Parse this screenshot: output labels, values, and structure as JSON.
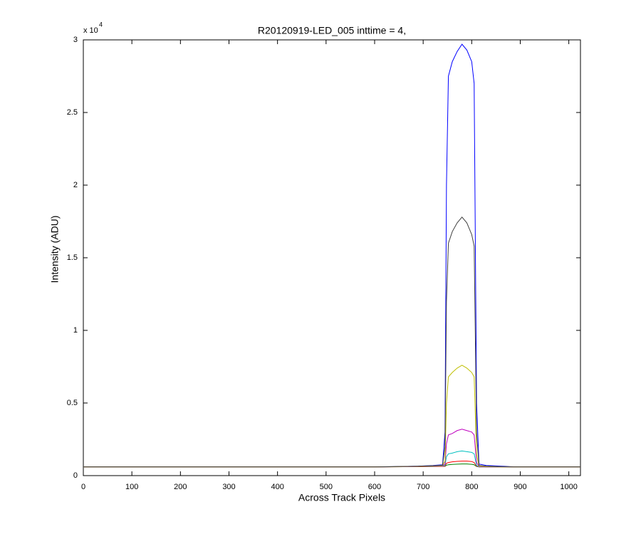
{
  "chart_data": {
    "type": "line",
    "title": "R20120919-LED_005 inttime = 4,",
    "xlabel": "Across Track Pixels",
    "ylabel": "Intensity (ADU)",
    "y_multiplier": "x 10",
    "y_multiplier_exponent": "4",
    "xlim": [
      0,
      1024
    ],
    "ylim": [
      0,
      3
    ],
    "xticks": [
      0,
      100,
      200,
      300,
      400,
      500,
      600,
      700,
      800,
      900,
      1000
    ],
    "yticks": [
      0,
      0.5,
      1,
      1.5,
      2,
      2.5,
      3
    ],
    "grid": false,
    "x": [
      0,
      100,
      200,
      300,
      400,
      500,
      600,
      690,
      720,
      740,
      745,
      748,
      752,
      760,
      770,
      780,
      790,
      800,
      805,
      810,
      815,
      830,
      860,
      880,
      900,
      1024
    ],
    "series": [
      {
        "color": "#0000ff",
        "values": [
          0.06,
          0.06,
          0.06,
          0.06,
          0.06,
          0.06,
          0.06,
          0.065,
          0.07,
          0.075,
          0.3,
          2.0,
          2.75,
          2.85,
          2.92,
          2.97,
          2.93,
          2.85,
          2.7,
          0.5,
          0.08,
          0.07,
          0.065,
          0.062,
          0.06,
          0.06
        ]
      },
      {
        "color": "#008000",
        "values": [
          0.06,
          0.06,
          0.06,
          0.06,
          0.06,
          0.06,
          0.06,
          0.062,
          0.063,
          0.064,
          0.064,
          0.072,
          0.075,
          0.077,
          0.079,
          0.08,
          0.08,
          0.078,
          0.075,
          0.063,
          0.06,
          0.06,
          0.06,
          0.06,
          0.06,
          0.06
        ]
      },
      {
        "color": "#ff0000",
        "values": [
          0.06,
          0.06,
          0.06,
          0.06,
          0.06,
          0.06,
          0.06,
          0.062,
          0.063,
          0.064,
          0.065,
          0.085,
          0.09,
          0.095,
          0.098,
          0.1,
          0.1,
          0.097,
          0.09,
          0.065,
          0.06,
          0.06,
          0.06,
          0.06,
          0.06,
          0.06
        ]
      },
      {
        "color": "#00bfbf",
        "values": [
          0.06,
          0.06,
          0.06,
          0.06,
          0.06,
          0.06,
          0.06,
          0.063,
          0.065,
          0.066,
          0.07,
          0.13,
          0.15,
          0.155,
          0.165,
          0.17,
          0.165,
          0.16,
          0.15,
          0.07,
          0.06,
          0.06,
          0.06,
          0.06,
          0.06,
          0.06
        ]
      },
      {
        "color": "#bf00bf",
        "values": [
          0.06,
          0.06,
          0.06,
          0.06,
          0.06,
          0.06,
          0.06,
          0.063,
          0.066,
          0.068,
          0.08,
          0.22,
          0.28,
          0.29,
          0.31,
          0.32,
          0.31,
          0.3,
          0.28,
          0.09,
          0.062,
          0.06,
          0.06,
          0.06,
          0.06,
          0.06
        ]
      },
      {
        "color": "#bfbf00",
        "values": [
          0.06,
          0.06,
          0.06,
          0.06,
          0.06,
          0.06,
          0.06,
          0.064,
          0.067,
          0.07,
          0.1,
          0.5,
          0.68,
          0.71,
          0.74,
          0.76,
          0.74,
          0.71,
          0.68,
          0.15,
          0.065,
          0.062,
          0.06,
          0.06,
          0.06,
          0.06
        ]
      },
      {
        "color": "#404040",
        "values": [
          0.06,
          0.06,
          0.06,
          0.06,
          0.06,
          0.06,
          0.06,
          0.065,
          0.068,
          0.072,
          0.2,
          1.2,
          1.6,
          1.68,
          1.74,
          1.78,
          1.74,
          1.66,
          1.58,
          0.3,
          0.07,
          0.065,
          0.062,
          0.06,
          0.06,
          0.06
        ]
      }
    ]
  }
}
